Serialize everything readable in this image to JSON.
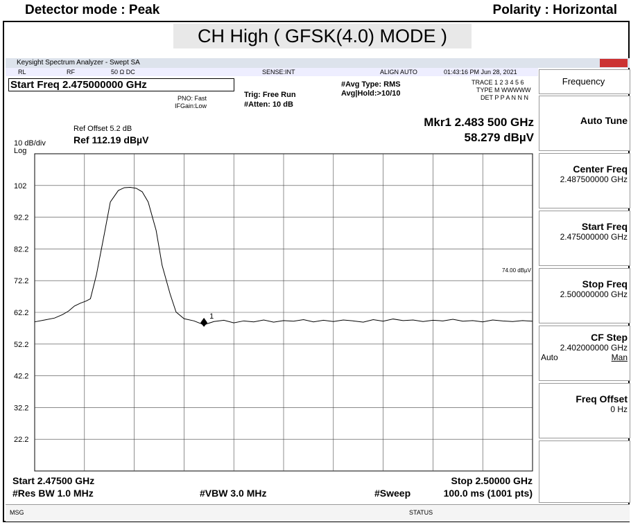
{
  "header": {
    "left": "Detector mode : Peak",
    "right": "Polarity : Horizontal",
    "title": "CH High ( GFSK(4.0) MODE )"
  },
  "window": {
    "title": "Keysight Spectrum Analyzer - Swept SA"
  },
  "status_row": {
    "rl": "RL",
    "rf": "RF",
    "input": "50 Ω  DC",
    "sense": "SENSE:INT",
    "align": "ALIGN AUTO",
    "time": "01:43:16 PM Jun 28, 2021"
  },
  "info": {
    "start_freq": "Start Freq 2.475000000 GHz",
    "pno": "PNO: Fast",
    "ifgain": "IFGain:Low",
    "trig": "Trig: Free Run",
    "atten": "#Atten: 10 dB",
    "avg_type": "#Avg Type: RMS",
    "avg_hold": "Avg|Hold:>10/10",
    "trace": "TRACE 1 2 3 4 5 6",
    "type": "TYPE M WWWWW",
    "det": "DET P P A N N N",
    "marker_freq": "Mkr1 2.483 500 GHz",
    "marker_level": "58.279 dBµV",
    "ref_offset": "Ref Offset 5.2 dB",
    "scale": "10 dB/div",
    "ref_level": "Ref 112.19 dBµV",
    "log": "Log"
  },
  "footer": {
    "start": "Start 2.47500 GHz",
    "stop": "Stop 2.50000 GHz",
    "rbw": "#Res BW 1.0 MHz",
    "vbw": "#VBW 3.0 MHz",
    "sweep": "#Sweep",
    "sweep_time": "100.0 ms (1001 pts)",
    "msg": "MSG",
    "status": "STATUS"
  },
  "softkeys": {
    "menu": "Frequency",
    "auto_tune": "Auto Tune",
    "center_label": "Center Freq",
    "center_value": "2.487500000 GHz",
    "start_label": "Start Freq",
    "start_value": "2.475000000 GHz",
    "stop_label": "Stop Freq",
    "stop_value": "2.500000000 GHz",
    "cf_label": "CF Step",
    "cf_value": "2.402000000 GHz",
    "cf_auto": "Auto",
    "cf_man": "Man",
    "offset_label": "Freq Offset",
    "offset_value": "0 Hz"
  },
  "chart_data": {
    "type": "line",
    "grid": true,
    "xlim": [
      2.475,
      2.5
    ],
    "ylim": [
      12.19,
      112.19
    ],
    "yticks": [
      {
        "value": 102.19,
        "label": "102"
      },
      {
        "value": 92.19,
        "label": "92.2"
      },
      {
        "value": 82.19,
        "label": "82.2"
      },
      {
        "value": 72.19,
        "label": "72.2"
      },
      {
        "value": 62.19,
        "label": "62.2"
      },
      {
        "value": 52.19,
        "label": "52.2"
      },
      {
        "value": 42.19,
        "label": "42.2"
      },
      {
        "value": 32.19,
        "label": "32.2"
      },
      {
        "value": 22.19,
        "label": "22.2"
      }
    ],
    "x": [
      2.475,
      2.4755,
      2.476,
      2.4764,
      2.4767,
      2.477,
      2.4773,
      2.4776,
      2.4778,
      2.4781,
      2.4785,
      2.4788,
      2.4792,
      2.4795,
      2.4798,
      2.4801,
      2.4804,
      2.4807,
      2.4811,
      2.4814,
      2.4818,
      2.4821,
      2.4825,
      2.483,
      2.4835,
      2.484,
      2.4845,
      2.485,
      2.4855,
      2.486,
      2.4865,
      2.487,
      2.4875,
      2.488,
      2.4885,
      2.489,
      2.4895,
      2.49,
      2.4905,
      2.491,
      2.4915,
      2.492,
      2.4925,
      2.493,
      2.4935,
      2.494,
      2.4945,
      2.495,
      2.4955,
      2.496,
      2.4965,
      2.497,
      2.4975,
      2.498,
      2.4985,
      2.499,
      2.4995,
      2.5
    ],
    "series": [
      {
        "color": "#000000",
        "values": [
          59.2,
          59.8,
          60.4,
          61.5,
          62.6,
          64.2,
          65.1,
          65.8,
          66.5,
          74,
          87,
          97,
          100.6,
          101.5,
          101.6,
          101.3,
          100.2,
          97,
          88,
          77,
          68,
          62.3,
          60.2,
          59.5,
          58.279,
          59.3,
          59.7,
          58.9,
          59.5,
          59.2,
          59.8,
          59.1,
          59.6,
          59.4,
          59.9,
          59.2,
          59.7,
          59.3,
          59.8,
          59.5,
          59.1,
          59.9,
          59.4,
          60.1,
          59.6,
          59.8,
          59.3,
          59.7,
          59.5,
          60,
          59.4,
          59.6,
          59.2,
          59.8,
          59.5,
          59.3,
          59.6,
          59.4
        ]
      }
    ],
    "marker": {
      "name": "1",
      "x": 2.4835,
      "y": 58.279
    },
    "limit_line": {
      "value": 74,
      "label": "74.00 dBµV"
    }
  }
}
